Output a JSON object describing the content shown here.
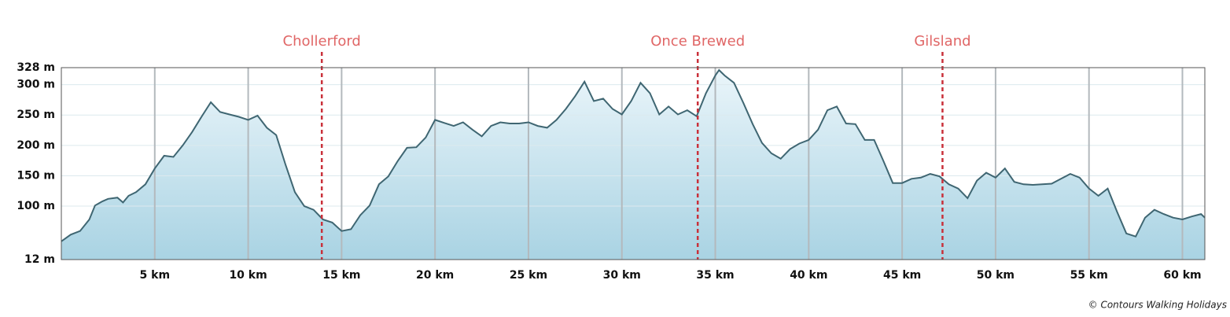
{
  "chart_data": {
    "type": "area",
    "x": [
      0,
      0.5,
      1,
      1.5,
      1.8,
      2.2,
      2.5,
      3,
      3.3,
      3.6,
      4,
      4.5,
      5,
      5.5,
      6,
      6.5,
      7,
      7.5,
      8,
      8.5,
      9,
      9.5,
      10,
      10.5,
      11,
      11.5,
      12,
      12.5,
      13,
      13.5,
      14,
      14.5,
      15,
      15.5,
      16,
      16.5,
      17,
      17.5,
      18,
      18.5,
      19,
      19.5,
      20,
      20.5,
      21,
      21.5,
      22,
      22.5,
      23,
      23.5,
      24,
      24.5,
      25,
      25.5,
      26,
      26.5,
      27,
      27.5,
      28,
      28.5,
      29,
      29.5,
      30,
      30.5,
      31,
      31.5,
      32,
      32.5,
      33,
      33.5,
      34,
      34.5,
      35,
      35.2,
      35.5,
      36,
      36.5,
      37,
      37.5,
      38,
      38.5,
      39,
      39.5,
      40,
      40.5,
      41,
      41.5,
      42,
      42.5,
      43,
      43.5,
      44,
      44.5,
      45,
      45.5,
      46,
      46.5,
      47,
      47.5,
      48,
      48.5,
      49,
      49.5,
      50,
      50.5,
      51,
      51.5,
      52,
      52.5,
      53,
      53.5,
      54,
      54.5,
      55,
      55.5,
      56,
      56.5,
      57,
      57.5,
      58,
      58.5,
      59,
      59.5,
      60,
      60.5,
      61,
      61.2
    ],
    "values": [
      42,
      53,
      59,
      78,
      101,
      108,
      112,
      114,
      106,
      117,
      123,
      136,
      162,
      183,
      181,
      200,
      222,
      247,
      271,
      255,
      251,
      247,
      242,
      249,
      229,
      217,
      168,
      123,
      100,
      94,
      78,
      73,
      59,
      62,
      85,
      101,
      136,
      149,
      174,
      196,
      197,
      213,
      242,
      237,
      232,
      238,
      226,
      215,
      232,
      238,
      236,
      236,
      238,
      232,
      229,
      242,
      260,
      281,
      305,
      273,
      277,
      260,
      251,
      273,
      303,
      286,
      251,
      264,
      251,
      258,
      248,
      286,
      315,
      324,
      315,
      303,
      270,
      235,
      204,
      187,
      178,
      194,
      203,
      209,
      226,
      258,
      264,
      236,
      235,
      209,
      209,
      174,
      138,
      138,
      145,
      147,
      153,
      149,
      136,
      129,
      113,
      142,
      155,
      147,
      162,
      140,
      136,
      135,
      136,
      137,
      145,
      153,
      147,
      129,
      117,
      129,
      91,
      55,
      50,
      81,
      94,
      87,
      81,
      78,
      83,
      87,
      81
    ],
    "color": "#3f6672",
    "xlim": [
      0,
      61.2
    ],
    "ylim": [
      12,
      328
    ],
    "xticks": [
      {
        "value": 5,
        "label": "5 km"
      },
      {
        "value": 10,
        "label": "10 km"
      },
      {
        "value": 15,
        "label": "15 km"
      },
      {
        "value": 20,
        "label": "20 km"
      },
      {
        "value": 25,
        "label": "25 km"
      },
      {
        "value": 30,
        "label": "30 km"
      },
      {
        "value": 35,
        "label": "35 km"
      },
      {
        "value": 40,
        "label": "40 km"
      },
      {
        "value": 45,
        "label": "45 km"
      },
      {
        "value": 50,
        "label": "50 km"
      },
      {
        "value": 55,
        "label": "55 km"
      },
      {
        "value": 60,
        "label": "60 km"
      }
    ],
    "yticks": [
      {
        "value": 12,
        "label": "12 m"
      },
      {
        "value": 100,
        "label": "100 m"
      },
      {
        "value": 150,
        "label": "150 m"
      },
      {
        "value": 200,
        "label": "200 m"
      },
      {
        "value": 250,
        "label": "250 m"
      },
      {
        "value": 300,
        "label": "300 m"
      },
      {
        "value": 328,
        "label": "328 m"
      }
    ],
    "markers": [
      {
        "label": "Chollerford",
        "x": 13.94
      },
      {
        "label": "Once Brewed",
        "x": 34.06
      },
      {
        "label": "Gilsland",
        "x": 47.16
      }
    ],
    "grid": true,
    "credit": "© Contours Walking Holidays"
  }
}
